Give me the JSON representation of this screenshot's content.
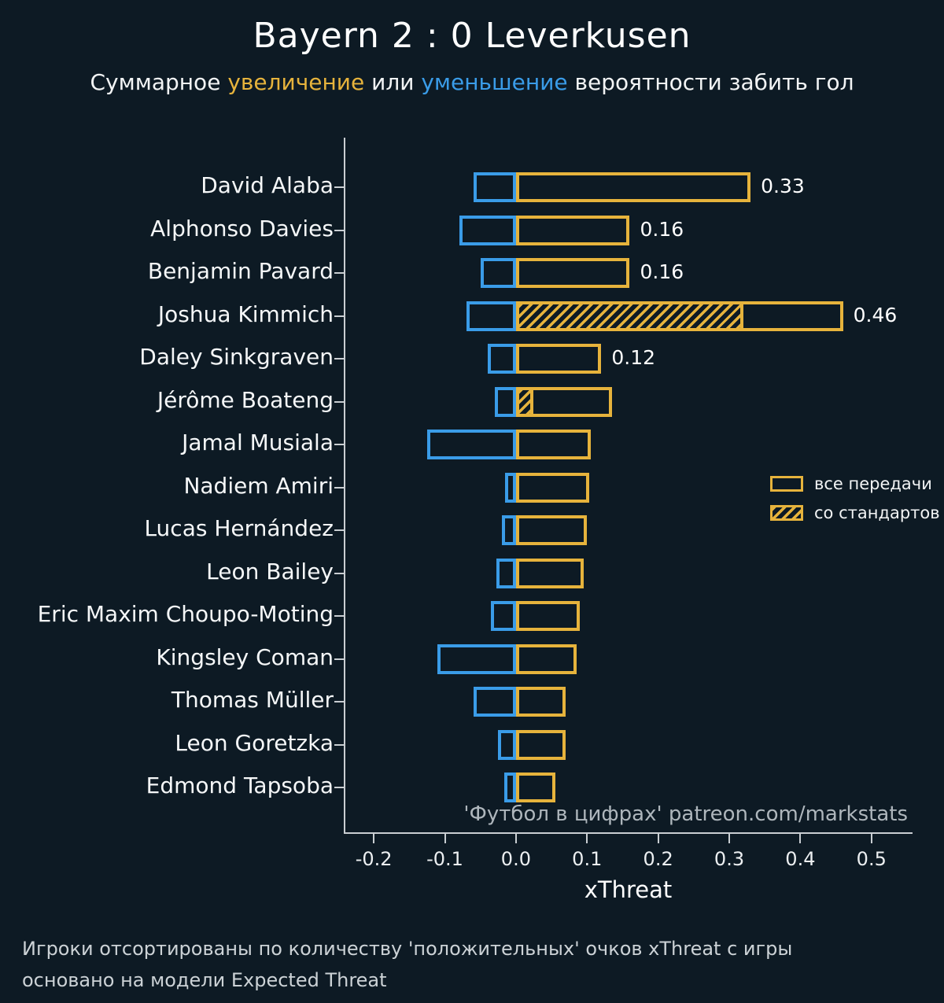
{
  "header": {
    "title": "Bayern 2 : 0 Leverkusen",
    "subtitle": {
      "pre": "Суммарное ",
      "increase_word": "увеличение",
      "mid": " или ",
      "decrease_word": "уменьшение",
      "post": " вероятности забить гол"
    }
  },
  "chart_data": {
    "type": "bar",
    "orientation": "horizontal",
    "title": "Bayern 2 : 0 Leverkusen",
    "xlabel": "xThreat",
    "xlim": [
      -0.24,
      0.56
    ],
    "x_ticks": [
      "-0.2",
      "-0.1",
      "0.0",
      "0.1",
      "0.2",
      "0.3",
      "0.4",
      "0.5"
    ],
    "grid": false,
    "legend_position": "center-right",
    "colors": {
      "increase": "#e6b33c",
      "decrease": "#3a9ce8",
      "background": "#0d1a24",
      "axis": "#c9ced2"
    },
    "legend": [
      {
        "label": "все передачи",
        "style": "outline"
      },
      {
        "label": "со стандартов",
        "style": "hatch"
      }
    ],
    "watermark": "'Футбол в цифрах' patreon.com/markstats",
    "players": [
      {
        "name": "David Alaba",
        "positive": 0.33,
        "negative": -0.06,
        "setpiece": 0,
        "value_label": "0.33"
      },
      {
        "name": "Alphonso Davies",
        "positive": 0.16,
        "negative": -0.08,
        "setpiece": 0,
        "value_label": "0.16"
      },
      {
        "name": "Benjamin Pavard",
        "positive": 0.16,
        "negative": -0.05,
        "setpiece": 0,
        "value_label": "0.16"
      },
      {
        "name": "Joshua Kimmich",
        "positive": 0.46,
        "negative": -0.07,
        "setpiece": 0.32,
        "value_label": "0.46"
      },
      {
        "name": "Daley Sinkgraven",
        "positive": 0.12,
        "negative": -0.04,
        "setpiece": 0,
        "value_label": "0.12"
      },
      {
        "name": "Jérôme Boateng",
        "positive": 0.135,
        "negative": -0.03,
        "setpiece": 0.025,
        "value_label": ""
      },
      {
        "name": "Jamal Musiala",
        "positive": 0.105,
        "negative": -0.125,
        "setpiece": 0,
        "value_label": ""
      },
      {
        "name": "Nadiem Amiri",
        "positive": 0.103,
        "negative": -0.015,
        "setpiece": 0,
        "value_label": ""
      },
      {
        "name": "Lucas Hernández",
        "positive": 0.1,
        "negative": -0.02,
        "setpiece": 0,
        "value_label": ""
      },
      {
        "name": "Leon Bailey",
        "positive": 0.095,
        "negative": -0.028,
        "setpiece": 0,
        "value_label": ""
      },
      {
        "name": "Eric Maxim Choupo-Moting",
        "positive": 0.09,
        "negative": -0.035,
        "setpiece": 0,
        "value_label": ""
      },
      {
        "name": "Kingsley Coman",
        "positive": 0.085,
        "negative": -0.11,
        "setpiece": 0,
        "value_label": ""
      },
      {
        "name": "Thomas Müller",
        "positive": 0.07,
        "negative": -0.06,
        "setpiece": 0,
        "value_label": ""
      },
      {
        "name": "Leon Goretzka",
        "positive": 0.07,
        "negative": -0.025,
        "setpiece": 0,
        "value_label": ""
      },
      {
        "name": "Edmond Tapsoba",
        "positive": 0.055,
        "negative": -0.017,
        "setpiece": 0,
        "value_label": ""
      }
    ]
  },
  "footer": {
    "line1": "Игроки отсортированы по количеству 'положительных' очков xThreat с игры",
    "line2": "основано на модели Expected Threat"
  }
}
